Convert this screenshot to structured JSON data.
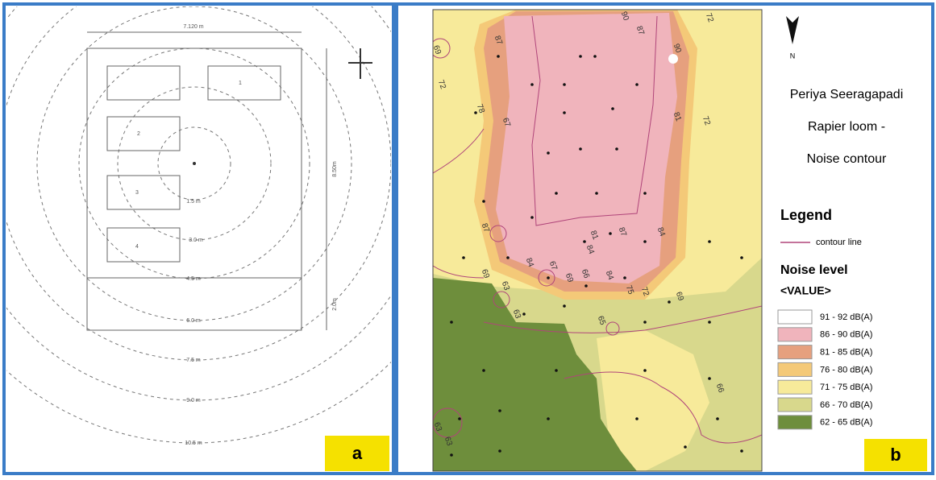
{
  "panel_a": {
    "label": "a",
    "width_dim": "7.120 m",
    "height_dim": "8.50m",
    "lower_dim": "2.0m",
    "machines": [
      "1",
      "2",
      "3",
      "4"
    ],
    "ring_labels": [
      "1.5 m",
      "3.0 m",
      "4.5 m",
      "6.0 m",
      "7.5 m",
      "9.0 m",
      "10.5 m"
    ]
  },
  "panel_b": {
    "label": "b",
    "north": "N",
    "title": [
      "Periya Seeragapadi",
      "Rapier loom -",
      "Noise contour"
    ],
    "legend": {
      "title": "Legend",
      "contour_line": "contour line",
      "subtitle": "Noise level",
      "field": "<VALUE>",
      "items": [
        {
          "label": "91 - 92 dB(A)",
          "color": "#ffffff"
        },
        {
          "label": "86 - 90 dB(A)",
          "color": "#f0b4bc"
        },
        {
          "label": "81 - 85 dB(A)",
          "color": "#e6a07e"
        },
        {
          "label": "76 - 80 dB(A)",
          "color": "#f4c978"
        },
        {
          "label": "71 - 75 dB(A)",
          "color": "#f7ea9a"
        },
        {
          "label": "66 - 70 dB(A)",
          "color": "#d8d88c"
        },
        {
          "label": "62 - 65 dB(A)",
          "color": "#6e8e3c"
        }
      ]
    },
    "contour_labels": [
      "87",
      "90",
      "87",
      "90",
      "72",
      "69",
      "72",
      "78",
      "67",
      "81",
      "72",
      "87",
      "81",
      "84",
      "87",
      "84",
      "84",
      "67",
      "69",
      "63",
      "63",
      "69",
      "66",
      "84",
      "75",
      "72",
      "69",
      "65",
      "66",
      "63",
      "63"
    ]
  }
}
